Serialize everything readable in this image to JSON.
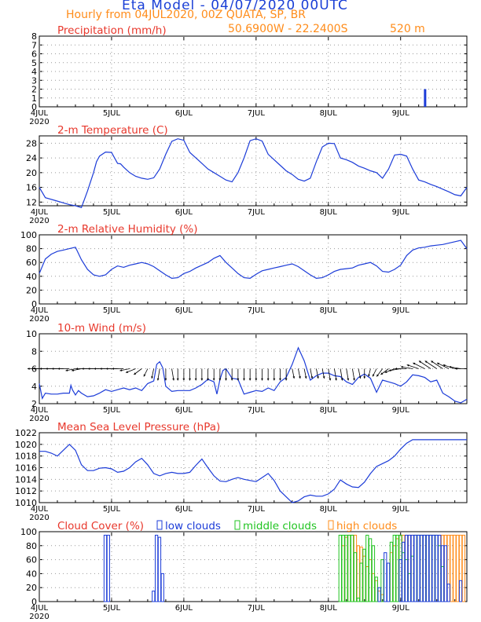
{
  "header": {
    "title": "Eta Model - 04/07/2020 00UTC",
    "subtitle": "Hourly from 04JUL2020, 00Z  QUATA, SP, BR",
    "coords": "50.6900W - 22.2400S",
    "elevation": "520  m"
  },
  "colors": {
    "title": "#1a3fd6",
    "subtitle": "#ff8c1a",
    "panel_title": "#e8382c",
    "series": "#1c3cd8",
    "wind": "#000000",
    "low": "#1c3cd8",
    "mid": "#22c422",
    "high": "#ff8c1a"
  },
  "x_axis": {
    "range": [
      0,
      142
    ],
    "ticks": [
      {
        "x": 0,
        "label": "4JUL",
        "year": "2020"
      },
      {
        "x": 24,
        "label": "5JUL"
      },
      {
        "x": 48,
        "label": "6JUL"
      },
      {
        "x": 72,
        "label": "7JUL"
      },
      {
        "x": 96,
        "label": "8JUL"
      },
      {
        "x": 120,
        "label": "9JUL"
      }
    ]
  },
  "chart_data": [
    {
      "type": "bar",
      "title": "Precipitation (mm/h)",
      "ylim": [
        0,
        8
      ],
      "yticks": [
        "0",
        "1",
        "2",
        "3",
        "4",
        "5",
        "6",
        "7",
        "8"
      ],
      "bars": [
        {
          "x": 128,
          "value": 2.0
        }
      ]
    },
    {
      "type": "line",
      "title": "2-m Temperature (C)",
      "ylim": [
        11,
        30
      ],
      "yticks": [
        "12",
        "16",
        "20",
        "24",
        "28"
      ],
      "x": [
        0,
        2,
        5,
        8,
        10,
        12,
        14,
        16,
        18,
        19,
        20,
        22,
        24,
        26,
        27,
        28,
        30,
        32,
        34,
        36,
        38,
        40,
        42,
        44,
        46,
        48,
        50,
        52,
        54,
        56,
        58,
        60,
        62,
        64,
        66,
        68,
        70,
        72,
        74,
        76,
        78,
        80,
        82,
        84,
        86,
        88,
        90,
        92,
        94,
        96,
        98,
        100,
        102,
        104,
        106,
        108,
        110,
        112,
        114,
        116,
        118,
        120,
        122,
        124,
        126,
        128,
        130,
        132,
        134,
        136,
        138,
        140,
        142
      ],
      "values": [
        16,
        13.2,
        12.5,
        11.8,
        11.3,
        11,
        10.5,
        15,
        20,
        23,
        24.5,
        25.6,
        25.5,
        22.5,
        22.4,
        21.5,
        20,
        19,
        18.5,
        18.2,
        18.6,
        21,
        25,
        28.5,
        29.2,
        28.8,
        25.5,
        24,
        22.5,
        21,
        20,
        19,
        18,
        17.5,
        20,
        24,
        28.7,
        29.2,
        28.6,
        25,
        23.5,
        22,
        20.5,
        19.5,
        18.2,
        17.7,
        18.5,
        23,
        27,
        28,
        27.9,
        24,
        23.5,
        22.8,
        21.8,
        21.2,
        20.5,
        20,
        18.5,
        21,
        24.8,
        25,
        24.5,
        21,
        18,
        17.5,
        16.8,
        16.2,
        15.5,
        14.8,
        14,
        13.7,
        16
      ]
    },
    {
      "type": "line",
      "title": "2-m Relative Humidity (%)",
      "ylim": [
        0,
        100
      ],
      "yticks": [
        "0",
        "20",
        "40",
        "60",
        "80",
        "100"
      ],
      "x": [
        0,
        2,
        4,
        6,
        8,
        10,
        12,
        14,
        16,
        18,
        20,
        22,
        24,
        26,
        28,
        30,
        32,
        34,
        36,
        38,
        40,
        42,
        44,
        46,
        48,
        50,
        52,
        54,
        56,
        58,
        60,
        62,
        64,
        66,
        68,
        70,
        72,
        74,
        76,
        78,
        80,
        82,
        84,
        86,
        88,
        90,
        92,
        94,
        96,
        98,
        100,
        102,
        104,
        106,
        108,
        110,
        112,
        114,
        116,
        118,
        120,
        122,
        124,
        126,
        128,
        130,
        132,
        134,
        136,
        138,
        140,
        142
      ],
      "values": [
        44,
        65,
        72,
        76,
        78,
        80,
        82,
        64,
        50,
        42,
        40,
        42,
        50,
        55,
        53,
        56,
        58,
        60,
        58,
        54,
        48,
        42,
        37,
        38,
        44,
        47,
        52,
        56,
        60,
        66,
        70,
        60,
        52,
        44,
        38,
        37,
        43,
        48,
        50,
        52,
        54,
        56,
        58,
        54,
        48,
        42,
        37,
        38,
        42,
        47,
        50,
        51,
        52,
        56,
        58,
        60,
        55,
        47,
        46,
        50,
        56,
        70,
        78,
        81,
        82,
        84,
        85,
        86,
        88,
        90,
        92,
        80
      ]
    },
    {
      "type": "line",
      "title": "10-m Wind (m/s)",
      "ylim": [
        2,
        10
      ],
      "yticks": [
        "2",
        "4",
        "6",
        "8",
        "10"
      ],
      "x": [
        0,
        1,
        2,
        4,
        6,
        8,
        10,
        10.5,
        11,
        12,
        13,
        14,
        16,
        18,
        20,
        22,
        24,
        26,
        28,
        30,
        32,
        34,
        36,
        38,
        39,
        40,
        41,
        42,
        44,
        46,
        48,
        50,
        52,
        54,
        56,
        58,
        59,
        60,
        61,
        62,
        64,
        66,
        68,
        70,
        72,
        74,
        76,
        78,
        80,
        82,
        84,
        86,
        88,
        90,
        92,
        94,
        96,
        98,
        100,
        102,
        104,
        106,
        108,
        110,
        112,
        114,
        116,
        118,
        120,
        122,
        124,
        126,
        128,
        130,
        132,
        134,
        136,
        138,
        140,
        142
      ],
      "values": [
        4.3,
        2.6,
        3.2,
        3.1,
        3.1,
        3.2,
        3.2,
        4.1,
        3.6,
        3,
        3.5,
        3.2,
        2.8,
        2.9,
        3.2,
        3.6,
        3.4,
        3.6,
        3.8,
        3.6,
        3.8,
        3.5,
        4.3,
        4.6,
        6.5,
        6.8,
        6.1,
        4,
        3.4,
        3.5,
        3.5,
        3.5,
        3.8,
        4.2,
        4.8,
        4.5,
        3.1,
        4.8,
        5.8,
        6,
        4.9,
        4.8,
        3.1,
        3.3,
        3.5,
        3.4,
        3.8,
        3.5,
        4.5,
        5,
        6.5,
        8.4,
        6.9,
        4.7,
        5.2,
        5.5,
        5.5,
        5.2,
        5.1,
        4.5,
        4.2,
        5,
        5.4,
        4.9,
        3.3,
        4.7,
        4.5,
        4.3,
        4,
        4.5,
        5.3,
        5.2,
        5,
        4.5,
        4.7,
        3.2,
        2.8,
        2.3,
        2.1,
        2.5
      ],
      "vector_x": [
        0,
        2,
        4,
        6,
        8,
        10,
        12,
        14,
        16,
        18,
        20,
        22,
        24,
        26,
        28,
        30,
        32,
        34,
        36,
        38,
        40,
        42,
        44,
        46,
        48,
        50,
        52,
        54,
        56,
        58,
        60,
        62,
        64,
        66,
        68,
        70,
        72,
        74,
        76,
        78,
        80,
        82,
        84,
        86,
        88,
        90,
        92,
        94,
        96,
        98,
        100,
        102,
        104,
        106,
        108,
        110,
        112,
        114,
        116,
        118,
        120,
        122,
        124,
        126,
        128,
        130,
        132,
        134,
        136,
        138,
        140,
        142
      ],
      "vector_u": [
        -3,
        -3,
        -3,
        -3,
        -3,
        -3,
        -2.5,
        -2.5,
        -3,
        -3,
        -3,
        -3,
        -3,
        -3,
        -3,
        -2.5,
        -2.5,
        -2,
        -1,
        -0.5,
        -0.5,
        0,
        0.5,
        0,
        0,
        0,
        0,
        0,
        0,
        0,
        0,
        0,
        0,
        0,
        0,
        0,
        0,
        0,
        0,
        0,
        0,
        0,
        0.5,
        0.5,
        0.5,
        0.5,
        0.5,
        0.5,
        0.5,
        0.5,
        0.5,
        0.5,
        0.5,
        0.5,
        0,
        -0.5,
        -1,
        -1.5,
        -2,
        -2.5,
        -3,
        -3,
        -3,
        -3,
        -3,
        -3,
        -3,
        -3,
        -3,
        -3,
        -3,
        -3
      ],
      "vector_v": [
        0,
        0,
        0,
        0,
        0,
        0,
        -0.5,
        -0.5,
        0,
        0,
        0,
        0,
        0,
        0,
        0,
        -0.5,
        -1,
        -1.5,
        -2,
        -2.5,
        -3,
        -3,
        -3,
        -3,
        -3,
        -3,
        -3,
        -3,
        -3,
        -3,
        -3,
        -3,
        -3,
        -3,
        -3,
        -3,
        -3,
        -3,
        -3,
        -3,
        -3,
        -3,
        -2.5,
        -2.5,
        -2.5,
        -2.5,
        -2.5,
        -2.5,
        -3,
        -3,
        -3,
        -3,
        -3,
        -2.5,
        -2.5,
        -2,
        -2,
        -2,
        -1.5,
        -1,
        -0.5,
        0,
        0.5,
        1,
        1.5,
        2,
        2,
        2,
        1.5,
        1,
        0.5,
        0
      ]
    },
    {
      "type": "line",
      "title": "Mean Sea Level Pressure (hPa)",
      "ylim": [
        1010,
        1022
      ],
      "yticks": [
        "1010",
        "1012",
        "1014",
        "1016",
        "1018",
        "1020",
        "1022"
      ],
      "x": [
        0,
        2,
        4,
        6,
        8,
        10,
        12,
        14,
        16,
        18,
        20,
        22,
        24,
        26,
        28,
        30,
        32,
        34,
        36,
        38,
        40,
        42,
        44,
        46,
        48,
        50,
        52,
        54,
        56,
        58,
        60,
        62,
        64,
        66,
        68,
        70,
        72,
        74,
        76,
        78,
        80,
        82,
        84,
        86,
        88,
        90,
        92,
        94,
        96,
        98,
        100,
        102,
        104,
        106,
        108,
        110,
        112,
        114,
        116,
        118,
        120,
        122,
        124,
        126,
        128,
        130,
        132,
        134,
        136,
        138,
        140,
        142
      ],
      "values": [
        1018.8,
        1018.8,
        1018.5,
        1018,
        1019,
        1020,
        1019,
        1016.5,
        1015.5,
        1015.5,
        1015.9,
        1016,
        1015.8,
        1015.2,
        1015.4,
        1016,
        1017,
        1017.6,
        1016.5,
        1015,
        1014.6,
        1015,
        1015.2,
        1015,
        1015,
        1015.2,
        1016.4,
        1017.5,
        1016,
        1014.6,
        1013.7,
        1013.6,
        1014,
        1014.3,
        1014,
        1013.8,
        1013.6,
        1014.3,
        1015,
        1013.8,
        1012,
        1011,
        1010,
        1010.3,
        1011,
        1011.3,
        1011.1,
        1011.1,
        1011.5,
        1012.3,
        1013.9,
        1013.2,
        1012.7,
        1012.6,
        1013.5,
        1015,
        1016.2,
        1016.7,
        1017.2,
        1018,
        1019.2,
        1020.2,
        1020.8,
        1020.8,
        1020.8,
        1020.8,
        1020.8,
        1020.8,
        1020.8,
        1020.8,
        1020.8,
        1020.8
      ]
    },
    {
      "type": "bar",
      "title": "Cloud Cover (%)",
      "ylim": [
        0,
        100
      ],
      "yticks": [
        "0",
        "20",
        "40",
        "60",
        "80",
        "100"
      ],
      "legend": [
        "low clouds",
        "middle clouds",
        "high clouds"
      ],
      "low": [
        [
          22,
          95
        ],
        [
          23,
          95
        ],
        [
          38,
          15
        ],
        [
          39,
          95
        ],
        [
          40,
          92
        ],
        [
          41,
          40
        ],
        [
          113,
          20
        ],
        [
          115,
          70
        ],
        [
          116,
          55
        ],
        [
          120,
          60
        ],
        [
          121,
          85
        ],
        [
          122,
          95
        ],
        [
          123,
          95
        ],
        [
          124,
          95
        ],
        [
          125,
          95
        ],
        [
          126,
          95
        ],
        [
          127,
          95
        ],
        [
          128,
          95
        ],
        [
          129,
          95
        ],
        [
          130,
          95
        ],
        [
          131,
          95
        ],
        [
          132,
          95
        ],
        [
          133,
          95
        ],
        [
          134,
          80
        ],
        [
          135,
          80
        ],
        [
          136,
          25
        ],
        [
          140,
          30
        ]
      ],
      "middle": [
        [
          100,
          95
        ],
        [
          101,
          95
        ],
        [
          102,
          95
        ],
        [
          103,
          95
        ],
        [
          104,
          95
        ],
        [
          105,
          70
        ],
        [
          106,
          5
        ],
        [
          107,
          55
        ],
        [
          108,
          75
        ],
        [
          109,
          95
        ],
        [
          110,
          90
        ],
        [
          111,
          80
        ],
        [
          112,
          35
        ],
        [
          114,
          60
        ],
        [
          117,
          85
        ],
        [
          118,
          95
        ],
        [
          119,
          95
        ],
        [
          120,
          95
        ],
        [
          121,
          70
        ],
        [
          122,
          60
        ],
        [
          123,
          40
        ],
        [
          124,
          65
        ],
        [
          125,
          95
        ],
        [
          126,
          95
        ],
        [
          127,
          95
        ],
        [
          128,
          95
        ],
        [
          129,
          95
        ],
        [
          130,
          95
        ],
        [
          131,
          95
        ],
        [
          132,
          95
        ],
        [
          133,
          80
        ],
        [
          134,
          50
        ]
      ],
      "high": [
        [
          101,
          80
        ],
        [
          102,
          92
        ],
        [
          103,
          95
        ],
        [
          104,
          95
        ],
        [
          105,
          95
        ],
        [
          106,
          80
        ],
        [
          107,
          78
        ],
        [
          108,
          65
        ],
        [
          109,
          50
        ],
        [
          110,
          60
        ],
        [
          111,
          40
        ],
        [
          112,
          30
        ],
        [
          113,
          15
        ],
        [
          114,
          10
        ],
        [
          117,
          70
        ],
        [
          118,
          80
        ],
        [
          119,
          90
        ],
        [
          120,
          95
        ],
        [
          121,
          95
        ],
        [
          122,
          95
        ],
        [
          123,
          95
        ],
        [
          124,
          95
        ],
        [
          125,
          95
        ],
        [
          126,
          95
        ],
        [
          127,
          95
        ],
        [
          128,
          95
        ],
        [
          129,
          95
        ],
        [
          130,
          95
        ],
        [
          131,
          95
        ],
        [
          132,
          95
        ],
        [
          133,
          95
        ],
        [
          134,
          95
        ],
        [
          135,
          95
        ],
        [
          136,
          95
        ],
        [
          137,
          95
        ],
        [
          138,
          95
        ],
        [
          139,
          95
        ],
        [
          140,
          95
        ],
        [
          141,
          95
        ]
      ]
    }
  ]
}
